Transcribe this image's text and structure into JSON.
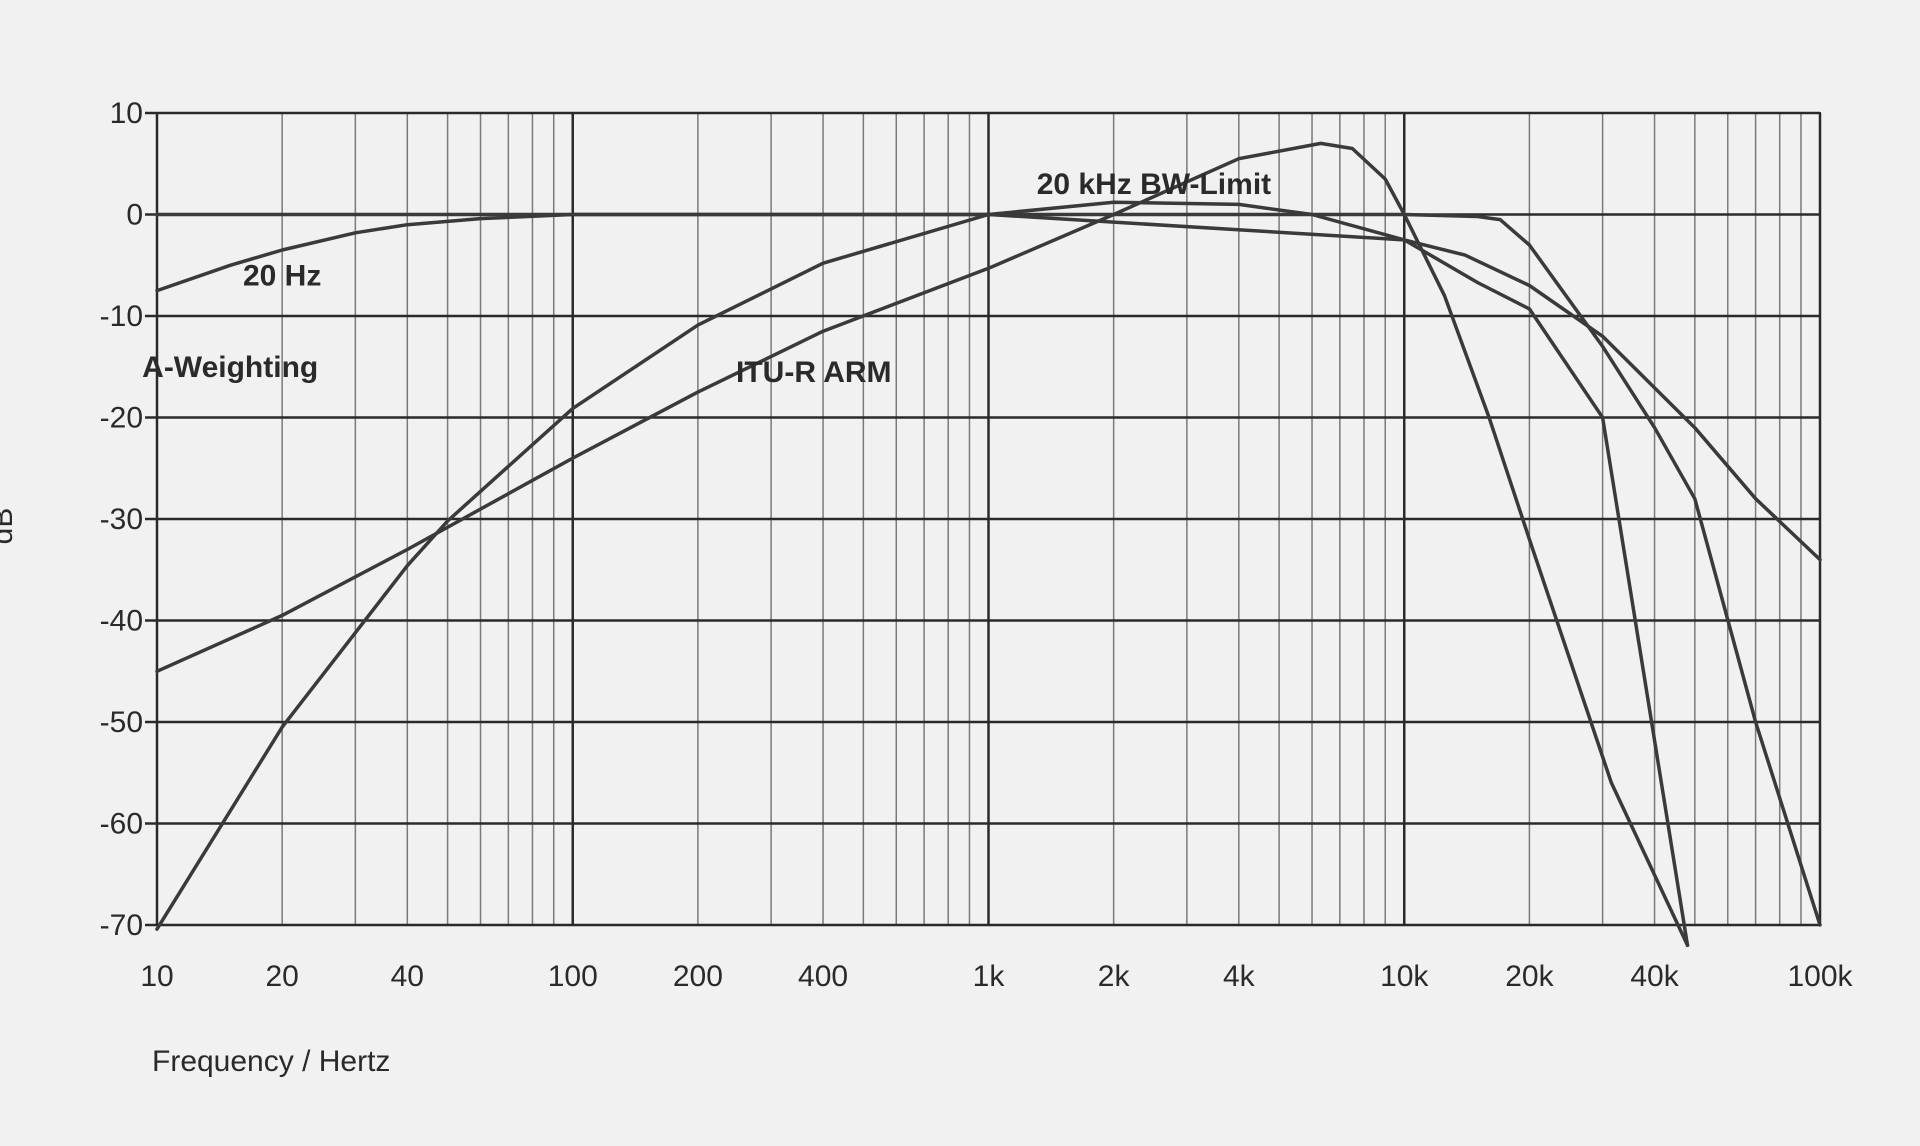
{
  "chart_data": {
    "type": "line",
    "title": "",
    "xlabel": "Frequency / Hertz",
    "ylabel": "dB",
    "x_scale": "log",
    "xlim": [
      10,
      100000
    ],
    "ylim": [
      -70,
      10
    ],
    "grid": true,
    "x_ticks": [
      {
        "value": 10,
        "label": "10"
      },
      {
        "value": 20,
        "label": "20"
      },
      {
        "value": 40,
        "label": "40"
      },
      {
        "value": 100,
        "label": "100"
      },
      {
        "value": 200,
        "label": "200"
      },
      {
        "value": 400,
        "label": "400"
      },
      {
        "value": 1000,
        "label": "1k"
      },
      {
        "value": 2000,
        "label": "2k"
      },
      {
        "value": 4000,
        "label": "4k"
      },
      {
        "value": 10000,
        "label": "10k"
      },
      {
        "value": 20000,
        "label": "20k"
      },
      {
        "value": 40000,
        "label": "40k"
      },
      {
        "value": 100000,
        "label": "100k"
      }
    ],
    "y_ticks": [
      {
        "value": 10,
        "label": "10"
      },
      {
        "value": 0,
        "label": "0"
      },
      {
        "value": -10,
        "label": "-10"
      },
      {
        "value": -20,
        "label": "-20"
      },
      {
        "value": -30,
        "label": "-30"
      },
      {
        "value": -40,
        "label": "-40"
      },
      {
        "value": -50,
        "label": "-50"
      },
      {
        "value": -60,
        "label": "-60"
      },
      {
        "value": -70,
        "label": "-70"
      }
    ],
    "series": [
      {
        "name": "20 Hz",
        "x": [
          10,
          15,
          20,
          30,
          40,
          60,
          100,
          1000,
          10000,
          14000,
          20000,
          30000,
          50000,
          70000,
          100000
        ],
        "y": [
          -7.5,
          -5,
          -3.5,
          -1.8,
          -1,
          -0.4,
          0,
          0,
          -2.5,
          -4,
          -7,
          -12,
          -21,
          -28,
          -34
        ]
      },
      {
        "name": "20 kHz BW-Limit",
        "x": [
          10,
          40,
          100,
          1000,
          10000,
          15000,
          17000,
          20000,
          25000,
          30000,
          40000,
          50000,
          70000,
          100000
        ],
        "y": [
          0,
          0,
          0,
          0,
          0,
          -0.2,
          -0.5,
          -3,
          -8.5,
          -13,
          -21,
          -28,
          -50,
          -70
        ]
      },
      {
        "name": "A-Weighting",
        "x": [
          10,
          20,
          40,
          50,
          100,
          200,
          400,
          1000,
          2000,
          4000,
          6000,
          10000,
          15000,
          20000,
          30000,
          48000
        ],
        "y": [
          -70.4,
          -50.5,
          -34.6,
          -30.2,
          -19.1,
          -10.9,
          -4.8,
          0,
          1.2,
          1,
          0,
          -2.5,
          -6.7,
          -9.3,
          -20,
          -72
        ]
      },
      {
        "name": "ITU-R ARM",
        "x": [
          10,
          20,
          40,
          100,
          200,
          400,
          1000,
          2000,
          4000,
          6300,
          7500,
          9000,
          10000,
          12500,
          16000,
          20000,
          31500,
          48000
        ],
        "y": [
          -45,
          -39.5,
          -33,
          -24,
          -17.5,
          -11.5,
          -5.3,
          0,
          5.5,
          7,
          6.5,
          3.5,
          0,
          -8,
          -20,
          -32,
          -56,
          -72
        ]
      }
    ],
    "annotations": [
      {
        "text": "20 kHz BW-Limit",
        "x": 2500,
        "y": 3
      },
      {
        "text": "20 Hz",
        "x": 20,
        "y": -6
      },
      {
        "text": "A-Weighting",
        "x": 15,
        "y": -15
      },
      {
        "text": "ITU-R ARM",
        "x": 380,
        "y": -15.5
      }
    ]
  }
}
